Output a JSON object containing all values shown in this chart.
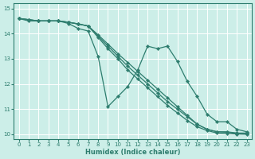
{
  "xlabel": "Humidex (Indice chaleur)",
  "bg_color": "#cceee8",
  "grid_color": "#ffffff",
  "line_color": "#2e7d6e",
  "xlim": [
    -0.5,
    23.5
  ],
  "ylim": [
    9.8,
    15.2
  ],
  "yticks": [
    10,
    11,
    12,
    13,
    14,
    15
  ],
  "xticks": [
    0,
    1,
    2,
    3,
    4,
    5,
    6,
    7,
    8,
    9,
    10,
    11,
    12,
    13,
    14,
    15,
    16,
    17,
    18,
    19,
    20,
    21,
    22,
    23
  ],
  "line1_x": [
    0,
    1,
    2,
    3,
    4,
    5,
    6,
    7,
    8,
    9,
    10,
    11,
    12,
    13,
    14,
    15,
    16,
    17,
    18,
    19,
    20,
    21,
    22,
    23
  ],
  "line1_y": [
    14.6,
    14.5,
    14.5,
    14.5,
    14.5,
    14.4,
    14.2,
    14.1,
    13.1,
    11.1,
    11.5,
    11.9,
    12.55,
    13.5,
    13.4,
    13.5,
    12.9,
    12.1,
    11.5,
    10.8,
    10.5,
    10.5,
    10.2,
    10.1
  ],
  "line2_x": [
    0,
    1,
    2,
    3,
    4,
    5,
    6,
    7,
    8,
    9,
    10,
    11,
    12,
    13,
    14,
    15,
    16,
    17,
    18,
    19,
    20,
    21,
    22,
    23
  ],
  "line2_y": [
    14.6,
    14.55,
    14.5,
    14.5,
    14.5,
    14.45,
    14.38,
    14.3,
    13.95,
    13.58,
    13.2,
    12.85,
    12.5,
    12.15,
    11.8,
    11.45,
    11.1,
    10.75,
    10.4,
    10.2,
    10.1,
    10.1,
    10.05,
    10.05
  ],
  "line3_x": [
    0,
    1,
    2,
    3,
    4,
    5,
    6,
    7,
    8,
    9,
    10,
    11,
    12,
    13,
    14,
    15,
    16,
    17,
    18,
    19,
    20,
    21,
    22,
    23
  ],
  "line3_y": [
    14.6,
    14.55,
    14.5,
    14.5,
    14.5,
    14.45,
    14.38,
    14.3,
    13.9,
    13.5,
    13.1,
    12.7,
    12.35,
    12.0,
    11.65,
    11.3,
    11.0,
    10.7,
    10.4,
    10.2,
    10.1,
    10.08,
    10.04,
    10.02
  ],
  "line4_x": [
    0,
    1,
    2,
    3,
    4,
    5,
    6,
    7,
    8,
    9,
    10,
    11,
    12,
    13,
    14,
    15,
    16,
    17,
    18,
    19,
    20,
    21,
    22,
    23
  ],
  "line4_y": [
    14.6,
    14.55,
    14.5,
    14.5,
    14.5,
    14.45,
    14.38,
    14.3,
    13.85,
    13.4,
    13.0,
    12.55,
    12.2,
    11.85,
    11.5,
    11.15,
    10.85,
    10.55,
    10.3,
    10.15,
    10.05,
    10.03,
    10.01,
    10.0
  ]
}
